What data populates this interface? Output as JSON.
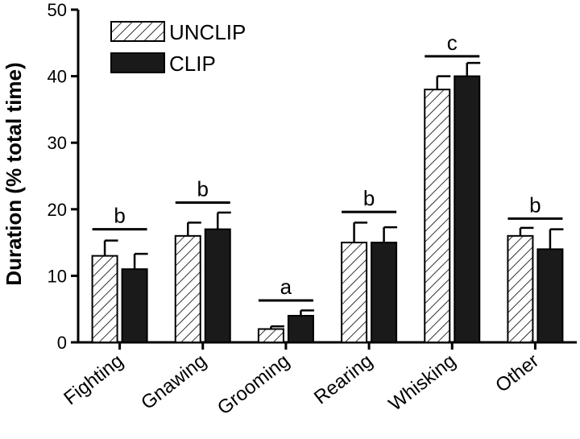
{
  "chart_data": {
    "type": "bar",
    "ylabel": "Duration (% total time)",
    "ylim": [
      0,
      50
    ],
    "yticks": [
      "0",
      "10",
      "20",
      "30",
      "40",
      "50"
    ],
    "grid": false,
    "legend_position": "top-left",
    "categories": [
      "Fighting",
      "Gnawing",
      "Grooming",
      "Rearing",
      "Whisking",
      "Other"
    ],
    "series": [
      {
        "name": "UNCLIP",
        "pattern": "hatched",
        "color": "#ffffff",
        "values": [
          13,
          16,
          2,
          15,
          38,
          16
        ],
        "errors": [
          2.3,
          2.0,
          0.4,
          3.0,
          2.0,
          1.2
        ]
      },
      {
        "name": "CLIP",
        "pattern": "solid",
        "color": "#1a1a1a",
        "values": [
          11,
          17,
          4,
          15,
          40,
          14
        ],
        "errors": [
          2.3,
          2.5,
          0.8,
          2.3,
          2.0,
          3.0
        ]
      }
    ],
    "significance": [
      {
        "category": "Fighting",
        "label": "b",
        "y": 17
      },
      {
        "category": "Gnawing",
        "label": "b",
        "y": 21
      },
      {
        "category": "Grooming",
        "label": "a",
        "y": 6.3
      },
      {
        "category": "Rearing",
        "label": "b",
        "y": 19.6
      },
      {
        "category": "Whisking",
        "label": "c",
        "y": 43
      },
      {
        "category": "Other",
        "label": "b",
        "y": 18.6
      }
    ]
  }
}
